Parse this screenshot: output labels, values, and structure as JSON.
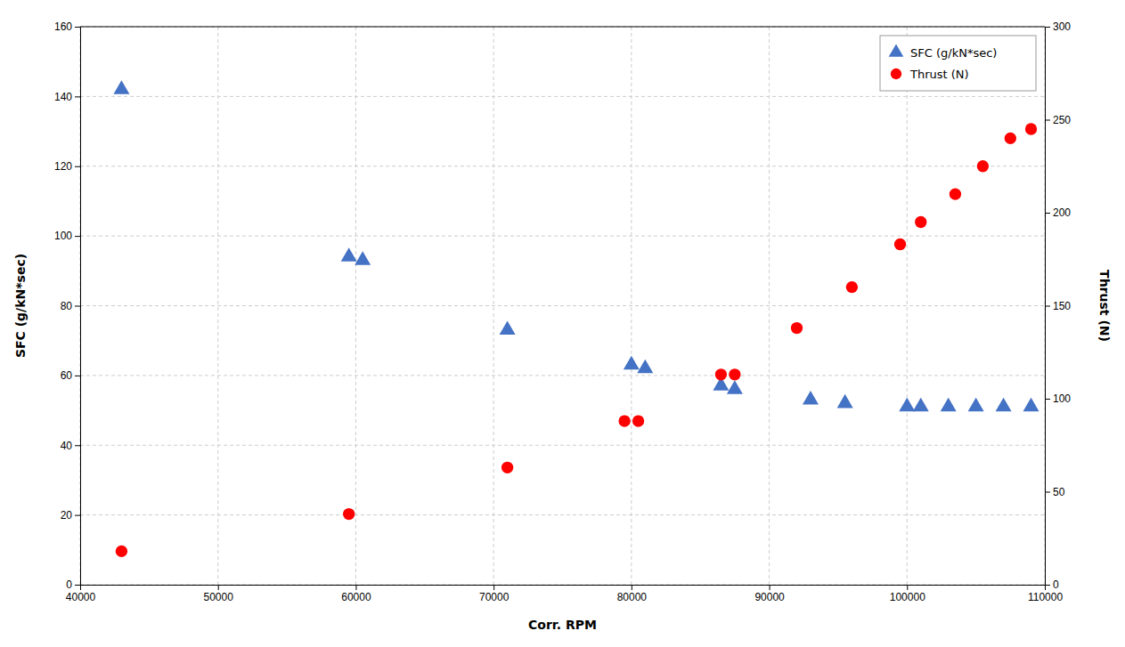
{
  "chart_data": {
    "type": "scatter",
    "xlabel": "Corr. RPM",
    "ylabel": "SFC (g/kN*sec)",
    "y2label": "Thrust (N)",
    "xlim": [
      40000,
      110000
    ],
    "ylim": [
      0,
      160
    ],
    "y2lim": [
      0,
      300
    ],
    "xticks": [
      40000,
      50000,
      60000,
      70000,
      80000,
      90000,
      100000,
      110000
    ],
    "yticks": [
      0,
      20,
      40,
      60,
      80,
      100,
      120,
      140,
      160
    ],
    "y2ticks": [
      0,
      50,
      100,
      150,
      200,
      250,
      300
    ],
    "grid": true,
    "legend": "upper right",
    "series": [
      {
        "name": "SFC (g/kN*sec)",
        "color": "#4472C4",
        "marker": "triangle",
        "x": [
          43000,
          59500,
          60500,
          71000,
          80000,
          81000,
          86500,
          87500,
          93000,
          95500,
          100000,
          101000,
          103000,
          105000,
          107000,
          109000
        ],
        "values": [
          142,
          94,
          93,
          73,
          63,
          62,
          57,
          56,
          53,
          52,
          51,
          51,
          51,
          51,
          51,
          51
        ]
      },
      {
        "name": "Thrust (N)",
        "color": "#FF0000",
        "marker": "circle",
        "axis": "y2",
        "x": [
          43000,
          59500,
          71000,
          79500,
          80500,
          86500,
          87500,
          92000,
          96000,
          99500,
          101000,
          103500,
          105500,
          107500,
          109000
        ],
        "values": [
          18,
          38,
          63,
          88,
          88,
          113,
          113,
          138,
          160,
          183,
          195,
          210,
          225,
          240,
          245
        ]
      }
    ]
  }
}
